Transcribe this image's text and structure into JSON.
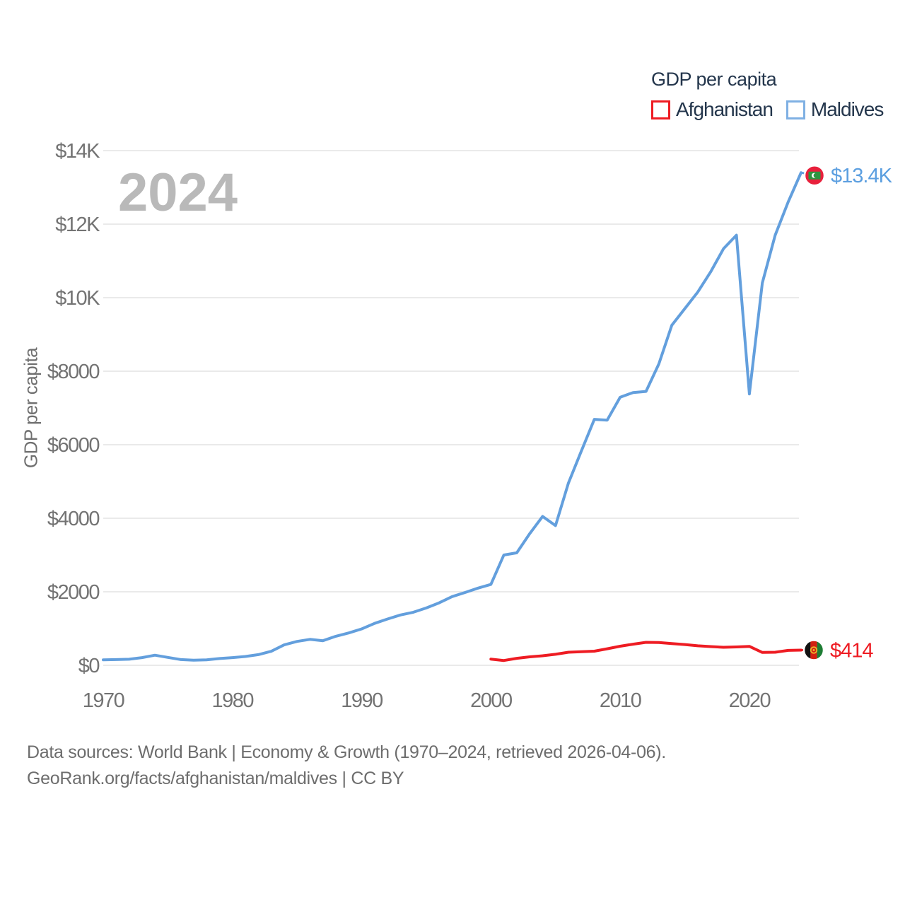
{
  "legend": {
    "title": "GDP per capita",
    "items": [
      {
        "label": "Afghanistan",
        "color": "#ee1c23"
      },
      {
        "label": "Maldives",
        "color": "#7fb0e3"
      }
    ]
  },
  "watermark": "2024",
  "y_axis": {
    "title": "GDP per capita"
  },
  "end_labels": {
    "maldives": {
      "text": "$13.4K",
      "color": "#5c9fe0"
    },
    "afghanistan": {
      "text": "$414",
      "color": "#ee1c23"
    }
  },
  "footer": {
    "line1": "Data sources: World Bank | Economy & Growth (1970–2024, retrieved 2026-04-06).",
    "line2": "GeoRank.org/facts/afghanistan/maldives | CC BY"
  },
  "chart_data": {
    "type": "line",
    "title": "GDP per capita",
    "x_range": [
      1970,
      2024
    ],
    "ylim": [
      0,
      14000
    ],
    "grid": "horizontal",
    "legend_position": "top-right",
    "y_ticks": [
      {
        "v": 0,
        "label": "$0"
      },
      {
        "v": 2000,
        "label": "$2000"
      },
      {
        "v": 4000,
        "label": "$4000"
      },
      {
        "v": 6000,
        "label": "$6000"
      },
      {
        "v": 8000,
        "label": "$8000"
      },
      {
        "v": 10000,
        "label": "$10K"
      },
      {
        "v": 12000,
        "label": "$12K"
      },
      {
        "v": 14000,
        "label": "$14K"
      }
    ],
    "x_ticks": [
      {
        "v": 1970,
        "label": "1970"
      },
      {
        "v": 1980,
        "label": "1980"
      },
      {
        "v": 1990,
        "label": "1990"
      },
      {
        "v": 2000,
        "label": "2000"
      },
      {
        "v": 2010,
        "label": "2010"
      },
      {
        "v": 2020,
        "label": "2020"
      }
    ],
    "series": [
      {
        "name": "Maldives",
        "color": "#639fdd",
        "start_year": 1970,
        "values": [
          150,
          155,
          165,
          210,
          275,
          215,
          155,
          140,
          150,
          185,
          210,
          240,
          290,
          380,
          555,
          650,
          705,
          670,
          790,
          880,
          990,
          1140,
          1260,
          1370,
          1445,
          1560,
          1700,
          1870,
          1980,
          2100,
          2200,
          3000,
          3060,
          3580,
          4050,
          3800,
          4960,
          5830,
          6690,
          6670,
          7290,
          7420,
          7450,
          8200,
          9250,
          9700,
          10150,
          10700,
          11330,
          11700,
          7380,
          10400,
          11700,
          12600,
          13400
        ]
      },
      {
        "name": "Afghanistan",
        "color": "#ee1c23",
        "start_year": 2000,
        "values": [
          170,
          130,
          190,
          230,
          260,
          300,
          355,
          370,
          385,
          450,
          520,
          575,
          625,
          620,
          590,
          565,
          530,
          510,
          490,
          500,
          515,
          350,
          355,
          405,
          414
        ]
      }
    ]
  }
}
